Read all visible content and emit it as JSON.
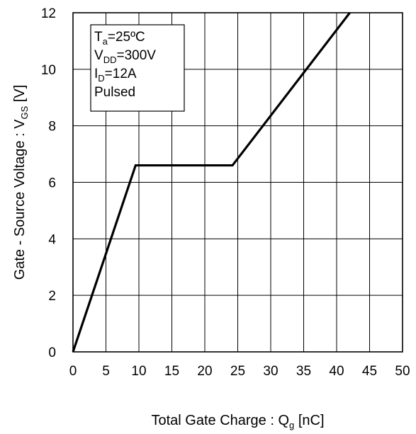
{
  "chart_data": {
    "type": "line",
    "xlabel": {
      "main": "Total Gate Charge : Q",
      "sub": "g",
      "unit": " [nC]"
    },
    "ylabel": {
      "main": "Gate - Source Voltage : V",
      "sub": "GS",
      "unit": " [V]"
    },
    "xlim": [
      0,
      50
    ],
    "ylim": [
      0,
      12
    ],
    "xticks": [
      0,
      5,
      10,
      15,
      20,
      25,
      30,
      35,
      40,
      45,
      50
    ],
    "yticks": [
      0,
      2,
      4,
      6,
      8,
      10,
      12
    ],
    "grid": true,
    "series": [
      {
        "x": [
          0,
          9.5,
          24.2,
          42
        ],
        "y": [
          0,
          6.6,
          6.6,
          12
        ]
      }
    ],
    "legend": {
      "position": "top-left",
      "lines": [
        {
          "main": "T",
          "sub": "a",
          "rest": "=25ºC"
        },
        {
          "main": "V",
          "sub": "DD",
          "rest": "=300V"
        },
        {
          "main": "I",
          "sub": "D",
          "rest": "=12A"
        },
        {
          "main": "Pulsed",
          "sub": "",
          "rest": ""
        }
      ]
    },
    "line_color": "#000000"
  }
}
